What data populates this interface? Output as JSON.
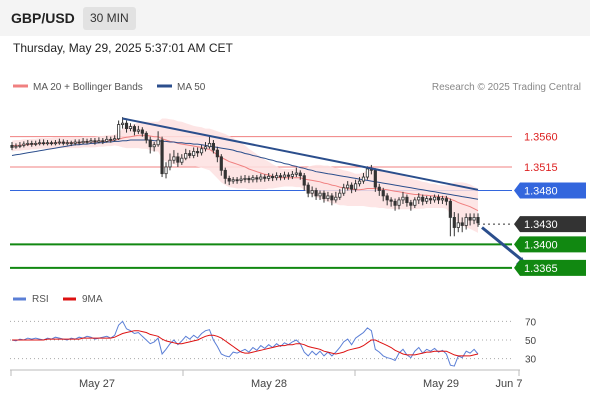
{
  "header": {
    "symbol": "GBP/USD",
    "timeframe": "30 MIN",
    "datetime": "Thursday, May 29, 2025 5:37:01 AM CET"
  },
  "legend": {
    "ma20_label": "MA 20 + Bollinger Bands",
    "ma50_label": "MA 50",
    "copyright": "Research © 2025 Trading Central"
  },
  "rsi_legend": {
    "rsi_label": "RSI",
    "ma_label": "9MA"
  },
  "colors": {
    "ma20": "#f08080",
    "bollinger_fill": "#fde0e0",
    "ma50": "#2b4e8c",
    "rsi": "#5b7fd6",
    "rsi_ma": "#dd1111",
    "resistance": "#f08080",
    "pivot": "#3366dd",
    "support": "#118811",
    "trendline": "#2b4e8c",
    "current": "#333333"
  },
  "chart_data": {
    "type": "candlestick",
    "instrument": "GBP/USD",
    "interval": "30 MIN",
    "x_labels": [
      "May 27",
      "May 28",
      "May 29",
      "Jun 7"
    ],
    "price_levels": [
      {
        "name": "resistance-2",
        "value": 1.356,
        "label": "1.3560",
        "style": "resistance"
      },
      {
        "name": "resistance-1",
        "value": 1.3515,
        "label": "1.3515",
        "style": "resistance"
      },
      {
        "name": "pivot",
        "value": 1.348,
        "label": "1.3480",
        "style": "pivot"
      },
      {
        "name": "current-price",
        "value": 1.343,
        "label": "1.3430",
        "style": "current"
      },
      {
        "name": "support-1",
        "value": 1.34,
        "label": "1.3400",
        "style": "support"
      },
      {
        "name": "support-2",
        "value": 1.3365,
        "label": "1.3365",
        "style": "support"
      }
    ],
    "candles": [
      [
        1.3547,
        1.3544,
        1.3552,
        1.354
      ],
      [
        1.3545,
        1.3546,
        1.355,
        1.3542
      ],
      [
        1.3546,
        1.3547,
        1.3552,
        1.3543
      ],
      [
        1.3547,
        1.3549,
        1.3553,
        1.3544
      ],
      [
        1.3549,
        1.355,
        1.3555,
        1.3546
      ],
      [
        1.355,
        1.3549,
        1.3554,
        1.3545
      ],
      [
        1.3549,
        1.355,
        1.3554,
        1.3546
      ],
      [
        1.355,
        1.3551,
        1.3556,
        1.3547
      ],
      [
        1.3551,
        1.355,
        1.3556,
        1.3547
      ],
      [
        1.355,
        1.3551,
        1.3555,
        1.3547
      ],
      [
        1.3551,
        1.355,
        1.3554,
        1.3547
      ],
      [
        1.355,
        1.3551,
        1.3555,
        1.3547
      ],
      [
        1.3551,
        1.3552,
        1.3557,
        1.3548
      ],
      [
        1.3552,
        1.355,
        1.3556,
        1.3547
      ],
      [
        1.355,
        1.3551,
        1.3555,
        1.3547
      ],
      [
        1.3551,
        1.355,
        1.3554,
        1.3546
      ],
      [
        1.355,
        1.3552,
        1.3556,
        1.3547
      ],
      [
        1.3552,
        1.3551,
        1.3556,
        1.3548
      ],
      [
        1.3551,
        1.3553,
        1.3558,
        1.3549
      ],
      [
        1.3553,
        1.3552,
        1.3557,
        1.3549
      ],
      [
        1.3552,
        1.3554,
        1.3558,
        1.355
      ],
      [
        1.3554,
        1.3552,
        1.3558,
        1.3548
      ],
      [
        1.3552,
        1.3554,
        1.3559,
        1.355
      ],
      [
        1.3554,
        1.3553,
        1.3558,
        1.3549
      ],
      [
        1.3553,
        1.3556,
        1.3561,
        1.3551
      ],
      [
        1.3556,
        1.3555,
        1.356,
        1.3551
      ],
      [
        1.3555,
        1.3557,
        1.3562,
        1.3553
      ],
      [
        1.3557,
        1.3578,
        1.3584,
        1.3555
      ],
      [
        1.3578,
        1.358,
        1.3589,
        1.3572
      ],
      [
        1.358,
        1.3572,
        1.3584,
        1.3566
      ],
      [
        1.3572,
        1.3575,
        1.358,
        1.3568
      ],
      [
        1.3575,
        1.3568,
        1.3578,
        1.3562
      ],
      [
        1.3568,
        1.357,
        1.3576,
        1.3564
      ],
      [
        1.357,
        1.3565,
        1.3574,
        1.356
      ],
      [
        1.3565,
        1.3555,
        1.3568,
        1.355
      ],
      [
        1.3555,
        1.3545,
        1.356,
        1.3535
      ],
      [
        1.3545,
        1.3548,
        1.3552,
        1.3538
      ],
      [
        1.3548,
        1.3555,
        1.3568,
        1.3545
      ],
      [
        1.3555,
        1.3505,
        1.356,
        1.35
      ],
      [
        1.3505,
        1.3515,
        1.3522,
        1.3498
      ],
      [
        1.3515,
        1.3525,
        1.3535,
        1.351
      ],
      [
        1.3525,
        1.353,
        1.354,
        1.352
      ],
      [
        1.353,
        1.3522,
        1.3536,
        1.3515
      ],
      [
        1.3522,
        1.3528,
        1.3534,
        1.3518
      ],
      [
        1.3528,
        1.3535,
        1.3542,
        1.3525
      ],
      [
        1.3535,
        1.3532,
        1.354,
        1.3528
      ],
      [
        1.3532,
        1.3538,
        1.3544,
        1.3528
      ],
      [
        1.3538,
        1.3536,
        1.3544,
        1.353
      ],
      [
        1.3536,
        1.3542,
        1.3548,
        1.3532
      ],
      [
        1.3542,
        1.3545,
        1.3552,
        1.3538
      ],
      [
        1.3545,
        1.355,
        1.3562,
        1.3542
      ],
      [
        1.355,
        1.354,
        1.3555,
        1.3535
      ],
      [
        1.354,
        1.353,
        1.3545,
        1.3522
      ],
      [
        1.353,
        1.351,
        1.3534,
        1.3502
      ],
      [
        1.351,
        1.3498,
        1.3514,
        1.349
      ],
      [
        1.3498,
        1.3494,
        1.3502,
        1.3488
      ],
      [
        1.3494,
        1.3496,
        1.35,
        1.349
      ],
      [
        1.3496,
        1.3495,
        1.35,
        1.349
      ],
      [
        1.3495,
        1.3497,
        1.3502,
        1.3491
      ],
      [
        1.3497,
        1.3498,
        1.3503,
        1.3492
      ],
      [
        1.3498,
        1.3496,
        1.3502,
        1.3491
      ],
      [
        1.3496,
        1.3499,
        1.3503,
        1.3492
      ],
      [
        1.3499,
        1.3497,
        1.3503,
        1.3492
      ],
      [
        1.3497,
        1.35,
        1.3505,
        1.3493
      ],
      [
        1.35,
        1.3498,
        1.3504,
        1.3493
      ],
      [
        1.3498,
        1.3501,
        1.3506,
        1.3494
      ],
      [
        1.3501,
        1.3499,
        1.3505,
        1.3494
      ],
      [
        1.3499,
        1.3502,
        1.3507,
        1.3495
      ],
      [
        1.3502,
        1.35,
        1.3506,
        1.3495
      ],
      [
        1.35,
        1.3503,
        1.3508,
        1.3496
      ],
      [
        1.3503,
        1.3501,
        1.3507,
        1.3496
      ],
      [
        1.3501,
        1.3504,
        1.3509,
        1.3497
      ],
      [
        1.3504,
        1.3506,
        1.3514,
        1.35
      ],
      [
        1.3506,
        1.3502,
        1.351,
        1.3496
      ],
      [
        1.3502,
        1.3488,
        1.3506,
        1.348
      ],
      [
        1.3488,
        1.3476,
        1.3492,
        1.347
      ],
      [
        1.3476,
        1.348,
        1.3486,
        1.347
      ],
      [
        1.348,
        1.3472,
        1.3484,
        1.3466
      ],
      [
        1.3472,
        1.3476,
        1.348,
        1.3466
      ],
      [
        1.3476,
        1.3468,
        1.348,
        1.3462
      ],
      [
        1.3468,
        1.3472,
        1.3478,
        1.3464
      ],
      [
        1.3472,
        1.3466,
        1.3476,
        1.3458
      ],
      [
        1.3466,
        1.347,
        1.3478,
        1.3462
      ],
      [
        1.347,
        1.3476,
        1.3482,
        1.3466
      ],
      [
        1.3476,
        1.3484,
        1.349,
        1.3472
      ],
      [
        1.3484,
        1.3488,
        1.3494,
        1.348
      ],
      [
        1.3488,
        1.3482,
        1.3492,
        1.3476
      ],
      [
        1.3482,
        1.349,
        1.3496,
        1.3478
      ],
      [
        1.349,
        1.3494,
        1.35,
        1.3486
      ],
      [
        1.3494,
        1.35,
        1.3506,
        1.349
      ],
      [
        1.35,
        1.3512,
        1.3516,
        1.3496
      ],
      [
        1.3512,
        1.351,
        1.3518,
        1.3504
      ],
      [
        1.351,
        1.3485,
        1.3513,
        1.3478
      ],
      [
        1.3485,
        1.348,
        1.349,
        1.3472
      ],
      [
        1.348,
        1.3472,
        1.3484,
        1.3464
      ],
      [
        1.3472,
        1.3466,
        1.3476,
        1.3458
      ],
      [
        1.3466,
        1.3464,
        1.347,
        1.3456
      ],
      [
        1.3464,
        1.3458,
        1.3468,
        1.345
      ],
      [
        1.3458,
        1.3466,
        1.347,
        1.3452
      ],
      [
        1.3466,
        1.347,
        1.3478,
        1.346
      ],
      [
        1.347,
        1.3462,
        1.3474,
        1.3456
      ],
      [
        1.3462,
        1.3458,
        1.3466,
        1.345
      ],
      [
        1.3458,
        1.3466,
        1.347,
        1.3454
      ],
      [
        1.3466,
        1.347,
        1.3476,
        1.346
      ],
      [
        1.347,
        1.3464,
        1.3474,
        1.3458
      ],
      [
        1.3464,
        1.3468,
        1.3472,
        1.346
      ],
      [
        1.3468,
        1.3466,
        1.3472,
        1.346
      ],
      [
        1.3466,
        1.347,
        1.3474,
        1.3462
      ],
      [
        1.347,
        1.3466,
        1.3474,
        1.346
      ],
      [
        1.3466,
        1.3468,
        1.3472,
        1.346
      ],
      [
        1.3468,
        1.3464,
        1.3472,
        1.3458
      ],
      [
        1.3464,
        1.344,
        1.3468,
        1.3412
      ],
      [
        1.344,
        1.3425,
        1.3448,
        1.3412
      ],
      [
        1.3425,
        1.3432,
        1.3446,
        1.3418
      ],
      [
        1.3432,
        1.3428,
        1.344,
        1.3418
      ],
      [
        1.3428,
        1.344,
        1.3446,
        1.3422
      ],
      [
        1.344,
        1.3436,
        1.3446,
        1.3428
      ],
      [
        1.3436,
        1.344,
        1.3446,
        1.343
      ],
      [
        1.344,
        1.3432,
        1.3446,
        1.3426
      ]
    ],
    "ma20": [
      1.3546,
      1.3547,
      1.3547,
      1.3548,
      1.3548,
      1.3549,
      1.3549,
      1.355,
      1.355,
      1.355,
      1.355,
      1.3551,
      1.3551,
      1.3551,
      1.3551,
      1.3551,
      1.3551,
      1.3551,
      1.3552,
      1.3552,
      1.3552,
      1.3552,
      1.3553,
      1.3553,
      1.3554,
      1.3554,
      1.3555,
      1.3556,
      1.3558,
      1.3559,
      1.356,
      1.3561,
      1.3562,
      1.3562,
      1.3562,
      1.3561,
      1.356,
      1.356,
      1.3557,
      1.3555,
      1.3553,
      1.3552,
      1.355,
      1.3549,
      1.3548,
      1.3547,
      1.3546,
      1.3545,
      1.3544,
      1.3542,
      1.3541,
      1.3537,
      1.3533,
      1.3529,
      1.3526,
      1.3523,
      1.3521,
      1.3519,
      1.3517,
      1.3515,
      1.3512,
      1.351,
      1.3508,
      1.3506,
      1.3504,
      1.3503,
      1.3501,
      1.35,
      1.3499,
      1.3499,
      1.3499,
      1.3499,
      1.3499,
      1.3499,
      1.3497,
      1.3496,
      1.3495,
      1.3494,
      1.3493,
      1.3491,
      1.349,
      1.3488,
      1.3487,
      1.3485,
      1.3484,
      1.3483,
      1.3482,
      1.3481,
      1.3481,
      1.3482,
      1.3483,
      1.3483,
      1.3483,
      1.3482,
      1.3482,
      1.3481,
      1.348,
      1.3479,
      1.3478,
      1.3477,
      1.3476,
      1.3475,
      1.3474,
      1.3474,
      1.3473,
      1.3473,
      1.3472,
      1.3472,
      1.3471,
      1.3471,
      1.347,
      1.3467,
      1.3465,
      1.3462,
      1.346,
      1.3458,
      1.3456,
      1.3453,
      1.345
    ],
    "bollinger_width": [
      0.0008,
      0.0008,
      0.0008,
      0.0008,
      0.0008,
      0.0008,
      0.0008,
      0.0008,
      0.0008,
      0.0008,
      0.0008,
      0.0008,
      0.0008,
      0.0008,
      0.0008,
      0.0008,
      0.0008,
      0.0008,
      0.0008,
      0.0008,
      0.0008,
      0.0008,
      0.0008,
      0.0008,
      0.0008,
      0.0008,
      0.0008,
      0.001,
      0.0014,
      0.0016,
      0.0017,
      0.0018,
      0.0019,
      0.002,
      0.002,
      0.0021,
      0.0022,
      0.0022,
      0.003,
      0.0032,
      0.0033,
      0.0033,
      0.0033,
      0.0033,
      0.0032,
      0.0031,
      0.003,
      0.003,
      0.003,
      0.003,
      0.0031,
      0.0033,
      0.0035,
      0.0037,
      0.0038,
      0.0038,
      0.0037,
      0.0036,
      0.0034,
      0.0032,
      0.003,
      0.0028,
      0.0026,
      0.0024,
      0.0022,
      0.002,
      0.0018,
      0.0016,
      0.0014,
      0.0013,
      0.0013,
      0.0013,
      0.0014,
      0.0014,
      0.0016,
      0.0019,
      0.0022,
      0.0024,
      0.0025,
      0.0026,
      0.0027,
      0.0027,
      0.0027,
      0.0027,
      0.0026,
      0.0026,
      0.0025,
      0.0024,
      0.0024,
      0.0025,
      0.0027,
      0.0028,
      0.0028,
      0.0028,
      0.0028,
      0.0028,
      0.0027,
      0.0027,
      0.0026,
      0.0025,
      0.0024,
      0.0023,
      0.0022,
      0.0021,
      0.002,
      0.0019,
      0.0018,
      0.0018,
      0.0017,
      0.0017,
      0.0017,
      0.0022,
      0.0027,
      0.003,
      0.0032,
      0.0033,
      0.0033,
      0.0033,
      0.0033
    ],
    "ma50": [
      1.3532,
      1.3533,
      1.3534,
      1.3535,
      1.3536,
      1.3537,
      1.3538,
      1.3539,
      1.354,
      1.3541,
      1.3542,
      1.3543,
      1.3544,
      1.3545,
      1.3546,
      1.3547,
      1.3548,
      1.3548,
      1.3549,
      1.3549,
      1.355,
      1.355,
      1.3551,
      1.3551,
      1.3552,
      1.3552,
      1.3553,
      1.3553,
      1.3554,
      1.3554,
      1.3555,
      1.3555,
      1.3555,
      1.3555,
      1.3555,
      1.3555,
      1.3554,
      1.3554,
      1.3553,
      1.3553,
      1.3552,
      1.3552,
      1.3551,
      1.3551,
      1.355,
      1.355,
      1.3549,
      1.3549,
      1.3548,
      1.3547,
      1.3546,
      1.3545,
      1.3544,
      1.3543,
      1.3542,
      1.3541,
      1.354,
      1.3538,
      1.3537,
      1.3535,
      1.3534,
      1.3532,
      1.3531,
      1.3529,
      1.3528,
      1.3526,
      1.3525,
      1.3523,
      1.3522,
      1.352,
      1.3519,
      1.3517,
      1.3516,
      1.3514,
      1.3513,
      1.3511,
      1.351,
      1.3508,
      1.3507,
      1.3506,
      1.3505,
      1.3504,
      1.3503,
      1.3502,
      1.3501,
      1.35,
      1.3499,
      1.3498,
      1.3497,
      1.3496,
      1.3495,
      1.3494,
      1.3493,
      1.3492,
      1.3491,
      1.349,
      1.3489,
      1.3488,
      1.3487,
      1.3486,
      1.3485,
      1.3484,
      1.3483,
      1.3482,
      1.3481,
      1.348,
      1.3479,
      1.3478,
      1.3477,
      1.3476,
      1.3475,
      1.3474,
      1.3473,
      1.3472,
      1.3471,
      1.347,
      1.3469,
      1.3468,
      1.3467
    ],
    "rsi": [
      50,
      49,
      51,
      50,
      52,
      51,
      52,
      51,
      50,
      52,
      51,
      53,
      52,
      51,
      50,
      52,
      51,
      53,
      52,
      54,
      53,
      51,
      52,
      53,
      54,
      52,
      55,
      66,
      70,
      62,
      60,
      57,
      58,
      54,
      50,
      46,
      48,
      52,
      35,
      40,
      46,
      50,
      45,
      49,
      54,
      51,
      55,
      52,
      57,
      60,
      61,
      50,
      43,
      35,
      33,
      32,
      37,
      36,
      38,
      40,
      37,
      42,
      39,
      44,
      41,
      45,
      42,
      46,
      43,
      47,
      45,
      48,
      50,
      46,
      37,
      33,
      38,
      34,
      38,
      33,
      37,
      33,
      37,
      42,
      48,
      51,
      45,
      52,
      55,
      58,
      63,
      60,
      40,
      37,
      33,
      31,
      30,
      28,
      36,
      40,
      34,
      31,
      38,
      42,
      36,
      40,
      38,
      41,
      37,
      39,
      35,
      23,
      22,
      33,
      31,
      38,
      36,
      40,
      35
    ],
    "rsi_ma": [
      50,
      50,
      50,
      50,
      50,
      50,
      50,
      50,
      50,
      51,
      51,
      51,
      51,
      51,
      51,
      51,
      51,
      51,
      52,
      52,
      52,
      52,
      52,
      52,
      52,
      52,
      53,
      55,
      57,
      58,
      59,
      60,
      60,
      59,
      58,
      56,
      55,
      54,
      51,
      49,
      48,
      47,
      46,
      46,
      47,
      48,
      49,
      50,
      52,
      54,
      55,
      55,
      54,
      52,
      49,
      46,
      43,
      40,
      37,
      36,
      36,
      37,
      38,
      39,
      40,
      41,
      42,
      43,
      44,
      44,
      45,
      45,
      46,
      46,
      45,
      43,
      42,
      41,
      40,
      38,
      37,
      36,
      35,
      36,
      37,
      39,
      40,
      41,
      42,
      44,
      47,
      50,
      50,
      48,
      46,
      44,
      42,
      39,
      37,
      35,
      34,
      34,
      34,
      35,
      36,
      37,
      37,
      38,
      38,
      38,
      38,
      36,
      34,
      33,
      33,
      33,
      33,
      34,
      35
    ],
    "rsi_ticks": [
      70,
      50,
      30
    ],
    "rsi_range": [
      20,
      80
    ],
    "price_range": [
      1.335,
      1.361
    ],
    "trendline": [
      [
        28,
        1.3587
      ],
      [
        118,
        1.3481
      ]
    ],
    "projection_arrow": [
      [
        118,
        1.3425
      ],
      [
        125,
        1.3367
      ]
    ]
  }
}
